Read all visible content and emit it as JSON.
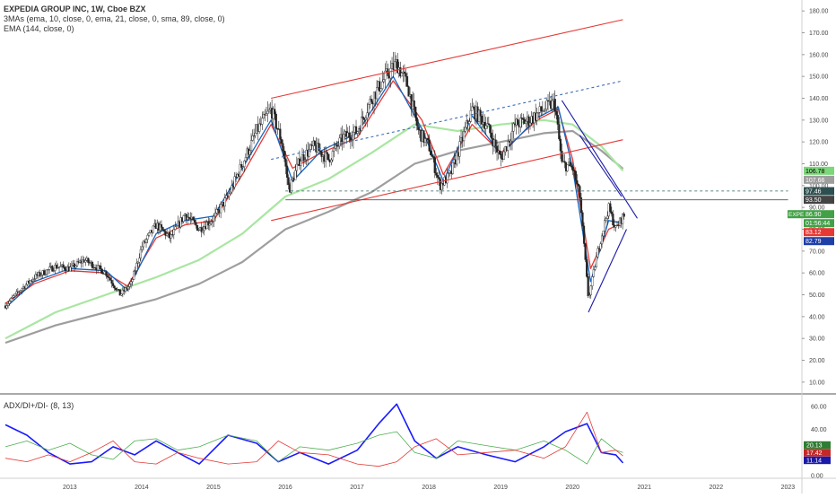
{
  "legend": {
    "title": "EXPEDIA GROUP INC, 1W, Cboe BZX",
    "mas": "3MAs (ema, 10, close, 0, ema, 21, close, 0, sma, 89, close, 0)",
    "ema": "EMA (144, close, 0)",
    "adx": "ADX/DI+/DI- (8, 13)"
  },
  "chart_data": [
    {
      "type": "candlestick",
      "title": "EXPEDIA GROUP INC, 1W, Cboe BZX",
      "x_ticks": [
        "2013",
        "2014",
        "2015",
        "2016",
        "2017",
        "2018",
        "2019",
        "2020",
        "2021",
        "2022",
        "2023"
      ],
      "ylim": [
        5,
        185
      ],
      "y_ticks": [
        "10.00",
        "20.00",
        "30.00",
        "40.00",
        "50.00",
        "60.00",
        "70.00",
        "80.00",
        "90.00",
        "100.00",
        "110.00",
        "120.00",
        "130.00",
        "140.00",
        "150.00",
        "160.00",
        "170.00",
        "180.00"
      ],
      "price_path": [
        [
          2012.1,
          45
        ],
        [
          2012.3,
          52
        ],
        [
          2012.5,
          58
        ],
        [
          2012.8,
          63
        ],
        [
          2013.0,
          62
        ],
        [
          2013.2,
          66
        ],
        [
          2013.5,
          60
        ],
        [
          2013.7,
          50
        ],
        [
          2013.85,
          55
        ],
        [
          2014.0,
          72
        ],
        [
          2014.2,
          82
        ],
        [
          2014.4,
          76
        ],
        [
          2014.6,
          87
        ],
        [
          2014.8,
          80
        ],
        [
          2015.0,
          85
        ],
        [
          2015.2,
          95
        ],
        [
          2015.4,
          110
        ],
        [
          2015.6,
          125
        ],
        [
          2015.8,
          135
        ],
        [
          2015.95,
          120
        ],
        [
          2016.05,
          98
        ],
        [
          2016.2,
          112
        ],
        [
          2016.4,
          118
        ],
        [
          2016.6,
          112
        ],
        [
          2016.8,
          122
        ],
        [
          2017.0,
          125
        ],
        [
          2017.2,
          140
        ],
        [
          2017.4,
          150
        ],
        [
          2017.55,
          156
        ],
        [
          2017.7,
          146
        ],
        [
          2017.85,
          125
        ],
        [
          2018.0,
          118
        ],
        [
          2018.15,
          100
        ],
        [
          2018.3,
          105
        ],
        [
          2018.45,
          120
        ],
        [
          2018.6,
          135
        ],
        [
          2018.8,
          128
        ],
        [
          2019.0,
          112
        ],
        [
          2019.2,
          128
        ],
        [
          2019.4,
          130
        ],
        [
          2019.6,
          135
        ],
        [
          2019.75,
          138
        ],
        [
          2019.85,
          110
        ],
        [
          2020.0,
          108
        ],
        [
          2020.1,
          95
        ],
        [
          2020.22,
          48
        ],
        [
          2020.35,
          70
        ],
        [
          2020.5,
          90
        ],
        [
          2020.6,
          80
        ],
        [
          2020.7,
          86
        ]
      ],
      "ma_lines": [
        {
          "color": "#e53935",
          "points": [
            [
              2012.1,
              46
            ],
            [
              2012.5,
              55
            ],
            [
              2013.0,
              61
            ],
            [
              2013.5,
              60
            ],
            [
              2013.8,
              54
            ],
            [
              2014.2,
              76
            ],
            [
              2014.6,
              82
            ],
            [
              2015.0,
              84
            ],
            [
              2015.4,
              105
            ],
            [
              2015.8,
              128
            ],
            [
              2016.1,
              108
            ],
            [
              2016.5,
              115
            ],
            [
              2017.0,
              122
            ],
            [
              2017.5,
              148
            ],
            [
              2017.9,
              130
            ],
            [
              2018.2,
              105
            ],
            [
              2018.6,
              128
            ],
            [
              2019.0,
              115
            ],
            [
              2019.5,
              130
            ],
            [
              2019.8,
              135
            ],
            [
              2020.0,
              112
            ],
            [
              2020.25,
              62
            ],
            [
              2020.5,
              80
            ],
            [
              2020.7,
              83
            ]
          ]
        },
        {
          "color": "#1565c0",
          "points": [
            [
              2012.1,
              44
            ],
            [
              2012.5,
              56
            ],
            [
              2013.0,
              62
            ],
            [
              2013.5,
              61
            ],
            [
              2013.8,
              52
            ],
            [
              2014.2,
              78
            ],
            [
              2014.6,
              84
            ],
            [
              2015.0,
              86
            ],
            [
              2015.4,
              108
            ],
            [
              2015.8,
              130
            ],
            [
              2016.1,
              102
            ],
            [
              2016.5,
              116
            ],
            [
              2017.0,
              124
            ],
            [
              2017.5,
              150
            ],
            [
              2017.9,
              126
            ],
            [
              2018.2,
              102
            ],
            [
              2018.6,
              132
            ],
            [
              2019.0,
              114
            ],
            [
              2019.5,
              131
            ],
            [
              2019.8,
              136
            ],
            [
              2020.0,
              108
            ],
            [
              2020.25,
              56
            ],
            [
              2020.5,
              84
            ],
            [
              2020.7,
              82.8
            ]
          ]
        },
        {
          "color": "#a8e6a1",
          "points": [
            [
              2012.1,
              30
            ],
            [
              2012.8,
              42
            ],
            [
              2013.5,
              50
            ],
            [
              2014.2,
              58
            ],
            [
              2014.8,
              66
            ],
            [
              2015.4,
              78
            ],
            [
              2016.0,
              95
            ],
            [
              2016.6,
              103
            ],
            [
              2017.2,
              115
            ],
            [
              2017.8,
              128
            ],
            [
              2018.4,
              125
            ],
            [
              2019.0,
              128
            ],
            [
              2019.6,
              130
            ],
            [
              2020.0,
              128
            ],
            [
              2020.4,
              118
            ],
            [
              2020.7,
              106.8
            ]
          ]
        },
        {
          "color": "#9e9e9e",
          "points": [
            [
              2012.1,
              28
            ],
            [
              2012.8,
              36
            ],
            [
              2013.5,
              42
            ],
            [
              2014.2,
              48
            ],
            [
              2014.8,
              55
            ],
            [
              2015.4,
              65
            ],
            [
              2016.0,
              80
            ],
            [
              2016.6,
              88
            ],
            [
              2017.2,
              97
            ],
            [
              2017.8,
              110
            ],
            [
              2018.4,
              116
            ],
            [
              2019.0,
              120
            ],
            [
              2019.6,
              124
            ],
            [
              2020.0,
              125
            ],
            [
              2020.4,
              116
            ],
            [
              2020.7,
              107.7
            ]
          ]
        }
      ],
      "trend_lines": [
        {
          "color": "#e53935",
          "style": "solid",
          "points": [
            [
              2015.8,
              140
            ],
            [
              2020.7,
              176
            ]
          ]
        },
        {
          "color": "#e53935",
          "style": "solid",
          "points": [
            [
              2015.8,
              84
            ],
            [
              2020.7,
              121
            ]
          ]
        },
        {
          "color": "#3f6fb5",
          "style": "dashed",
          "points": [
            [
              2015.8,
              112
            ],
            [
              2020.7,
              148
            ]
          ]
        },
        {
          "color": "#1a1aa8",
          "style": "solid",
          "points": [
            [
              2019.85,
              139
            ],
            [
              2020.9,
              85
            ]
          ]
        },
        {
          "color": "#1a1aa8",
          "style": "solid",
          "points": [
            [
              2020.22,
              42
            ],
            [
              2020.75,
              80
            ]
          ]
        },
        {
          "color": "#1a1aa8",
          "style": "solid",
          "points": [
            [
              2020.1,
              123
            ],
            [
              2020.68,
              95
            ]
          ]
        },
        {
          "color": "#555555",
          "style": "solid",
          "points": [
            [
              2016.0,
              93.5
            ],
            [
              2023.0,
              93.5
            ]
          ]
        },
        {
          "color": "#2e5f5f",
          "style": "dashed",
          "points": [
            [
              2016.0,
              97.5
            ],
            [
              2023.0,
              97.5
            ]
          ]
        }
      ],
      "price_labels": [
        {
          "value": 106.78,
          "text": "106.78",
          "bg": "#7cd67a",
          "fg": "#000000"
        },
        {
          "value": 107.66,
          "text": "107.66",
          "bg": "#9e9e9e",
          "fg": "#ffffff"
        },
        {
          "value": 97.46,
          "text": "97.46",
          "bg": "#2e4f4f",
          "fg": "#ffffff"
        },
        {
          "value": 93.5,
          "text": "93.50",
          "bg": "#444444",
          "fg": "#ffffff"
        },
        {
          "value": 86.9,
          "text": "86.90",
          "bg": "#43a047",
          "fg": "#ffffff",
          "tag": "EXPE"
        },
        {
          "value": 82.5,
          "text": "01:56:44",
          "bg": "#43a047",
          "fg": "#ffffff"
        },
        {
          "value": 83.12,
          "text": "83.12",
          "bg": "#e53935",
          "fg": "#ffffff"
        },
        {
          "value": 82.79,
          "text": "82.79",
          "bg": "#1e3ea8",
          "fg": "#ffffff"
        }
      ]
    },
    {
      "type": "line",
      "title": "ADX/DI+/DI- (8, 13)",
      "ylim": [
        0,
        70
      ],
      "y_ticks": [
        "0.00",
        "20.00",
        "40.00",
        "60.00"
      ],
      "series": [
        {
          "color": "#1a1aff",
          "points": [
            [
              2012.1,
              44
            ],
            [
              2012.4,
              35
            ],
            [
              2012.7,
              20
            ],
            [
              2013.0,
              10
            ],
            [
              2013.3,
              12
            ],
            [
              2013.6,
              25
            ],
            [
              2013.9,
              18
            ],
            [
              2014.2,
              30
            ],
            [
              2014.5,
              20
            ],
            [
              2014.8,
              10
            ],
            [
              2015.2,
              35
            ],
            [
              2015.6,
              28
            ],
            [
              2015.9,
              12
            ],
            [
              2016.2,
              20
            ],
            [
              2016.6,
              10
            ],
            [
              2017.0,
              22
            ],
            [
              2017.3,
              45
            ],
            [
              2017.55,
              62
            ],
            [
              2017.8,
              30
            ],
            [
              2018.1,
              15
            ],
            [
              2018.4,
              25
            ],
            [
              2018.8,
              18
            ],
            [
              2019.2,
              12
            ],
            [
              2019.6,
              25
            ],
            [
              2019.9,
              38
            ],
            [
              2020.2,
              45
            ],
            [
              2020.4,
              20
            ],
            [
              2020.6,
              18
            ],
            [
              2020.7,
              11
            ]
          ]
        },
        {
          "color": "#4caf50",
          "points": [
            [
              2012.1,
              25
            ],
            [
              2012.4,
              30
            ],
            [
              2012.7,
              22
            ],
            [
              2013.0,
              28
            ],
            [
              2013.3,
              18
            ],
            [
              2013.6,
              14
            ],
            [
              2013.9,
              30
            ],
            [
              2014.2,
              32
            ],
            [
              2014.5,
              22
            ],
            [
              2014.8,
              25
            ],
            [
              2015.2,
              35
            ],
            [
              2015.6,
              30
            ],
            [
              2015.9,
              12
            ],
            [
              2016.2,
              25
            ],
            [
              2016.6,
              22
            ],
            [
              2017.0,
              28
            ],
            [
              2017.3,
              35
            ],
            [
              2017.55,
              38
            ],
            [
              2017.8,
              20
            ],
            [
              2018.1,
              15
            ],
            [
              2018.4,
              30
            ],
            [
              2018.8,
              26
            ],
            [
              2019.2,
              22
            ],
            [
              2019.6,
              30
            ],
            [
              2019.9,
              22
            ],
            [
              2020.2,
              10
            ],
            [
              2020.4,
              32
            ],
            [
              2020.6,
              22
            ],
            [
              2020.7,
              20
            ]
          ]
        },
        {
          "color": "#e53935",
          "points": [
            [
              2012.1,
              15
            ],
            [
              2012.4,
              12
            ],
            [
              2012.7,
              18
            ],
            [
              2013.0,
              12
            ],
            [
              2013.3,
              20
            ],
            [
              2013.6,
              30
            ],
            [
              2013.9,
              12
            ],
            [
              2014.2,
              10
            ],
            [
              2014.5,
              20
            ],
            [
              2014.8,
              15
            ],
            [
              2015.2,
              10
            ],
            [
              2015.6,
              12
            ],
            [
              2015.9,
              30
            ],
            [
              2016.2,
              20
            ],
            [
              2016.6,
              18
            ],
            [
              2017.0,
              10
            ],
            [
              2017.3,
              8
            ],
            [
              2017.55,
              12
            ],
            [
              2017.8,
              25
            ],
            [
              2018.1,
              32
            ],
            [
              2018.4,
              18
            ],
            [
              2018.8,
              20
            ],
            [
              2019.2,
              22
            ],
            [
              2019.6,
              15
            ],
            [
              2019.9,
              25
            ],
            [
              2020.2,
              55
            ],
            [
              2020.4,
              20
            ],
            [
              2020.6,
              22
            ],
            [
              2020.7,
              17
            ]
          ]
        }
      ],
      "value_labels": [
        {
          "value": 20.13,
          "text": "20.13",
          "bg": "#2e7d32"
        },
        {
          "value": 17.42,
          "text": "17.42",
          "bg": "#c62828"
        },
        {
          "value": 11.14,
          "text": "11.14",
          "bg": "#1a1aa8"
        }
      ]
    }
  ]
}
